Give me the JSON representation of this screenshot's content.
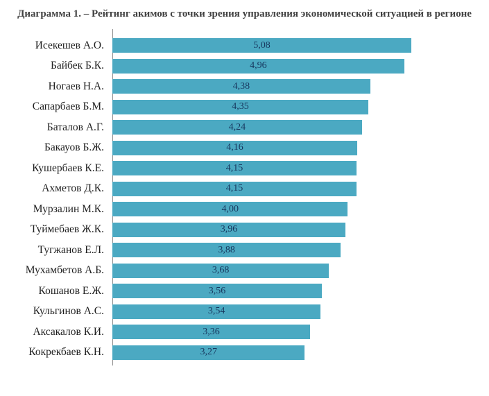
{
  "title": "Диаграмма 1. – Рейтинг акимов с точки зрения управления экономической ситуацией в регионе",
  "chart_data": {
    "type": "bar",
    "orientation": "horizontal",
    "title": "Диаграмма 1. – Рейтинг акимов с точки зрения управления экономической ситуацией в регионе",
    "categories": [
      "Исекешев А.О.",
      "Байбек Б.К.",
      "Ногаев Н.А.",
      "Сапарбаев Б.М.",
      "Баталов А.Г.",
      "Бакауов Б.Ж.",
      "Кушербаев К.Е.",
      "Ахметов Д.К.",
      "Мурзалин М.К.",
      "Туймебаев Ж.К.",
      "Тугжанов Е.Л.",
      "Мухамбетов А.Б.",
      "Кошанов Е.Ж.",
      "Кульгинов А.С.",
      "Аксакалов К.И.",
      "Кокрекбаев К.Н."
    ],
    "values": [
      5.08,
      4.96,
      4.38,
      4.35,
      4.24,
      4.16,
      4.15,
      4.15,
      4.0,
      3.96,
      3.88,
      3.68,
      3.56,
      3.54,
      3.36,
      3.27
    ],
    "value_labels": [
      "5,08",
      "4,96",
      "4,38",
      "4,35",
      "4,24",
      "4,16",
      "4,15",
      "4,15",
      "4,00",
      "3,96",
      "3,88",
      "3,68",
      "3,56",
      "3,54",
      "3,36",
      "3,27"
    ],
    "xlim": [
      0,
      6.4
    ],
    "grid": false,
    "legend": null,
    "value_label_position": "center-inside",
    "bar_color": "#4BA9C2",
    "value_text_color": "#17375E",
    "axis_line_color": "#8f8f8f"
  }
}
